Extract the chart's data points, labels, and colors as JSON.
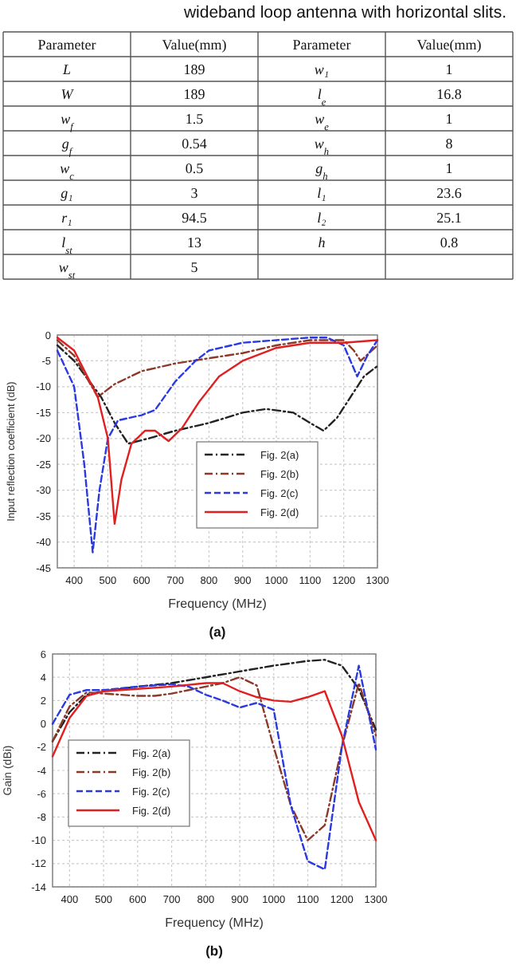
{
  "chart_data": [
    {
      "type": "other",
      "title": "wideband loop antenna with horizontal slits.",
      "annotations": [
        "Parameter",
        "Value(mm)",
        "Parameter",
        "Value(mm)",
        "L",
        "189",
        "w₁",
        "1",
        "W",
        "189",
        "l$_{e}$",
        "16.8",
        "w$_{f}$",
        "1.5",
        "w$_{e}$",
        "1",
        "g$_{f}$",
        "0.54",
        "w$_{h}$",
        "8",
        "w$_{c}$",
        "0.5",
        "g$_{h}$",
        "1",
        "g₁",
        "3",
        "l₁",
        "23.6",
        "r₁",
        "94.5",
        "l₂",
        "25.1",
        "l$_{st}$",
        "13",
        "h",
        "0.8",
        "w$_{st}$",
        "5"
      ]
    },
    {
      "type": "line",
      "xlabel": "Frequency (MHz)",
      "ylabel": "Input reflection coefficient (dB)",
      "annotations": [
        "(a)"
      ],
      "xlim": [
        350,
        1300
      ],
      "xticks": [
        400,
        500,
        600,
        700,
        800,
        900,
        1000,
        1100,
        1200,
        1300
      ],
      "ylim": [
        -45,
        0
      ],
      "yticks": [
        -45,
        -40,
        -35,
        -30,
        -25,
        -20,
        -15,
        -10,
        -5,
        0
      ],
      "grid": true,
      "legend": "bottom",
      "series": [
        {
          "name": "Fig. 2(a)",
          "color": "#222222",
          "line_style": "dashdot",
          "x": [
            350,
            400,
            480,
            520,
            560,
            620,
            700,
            800,
            900,
            970,
            1050,
            1100,
            1140,
            1180,
            1220,
            1260,
            1300
          ],
          "values": [
            -2,
            -5,
            -12,
            -17,
            -21,
            -20,
            -18.5,
            -17,
            -15,
            -14.3,
            -15,
            -17,
            -18.5,
            -16,
            -12,
            -8,
            -6
          ]
        },
        {
          "name": "Fig. 2(b)",
          "color": "#8b3a2a",
          "line_style": "dashdot",
          "x": [
            350,
            400,
            470,
            520,
            600,
            700,
            800,
            900,
            1000,
            1100,
            1200,
            1230,
            1250,
            1300
          ],
          "values": [
            -1,
            -4,
            -12,
            -9.5,
            -7,
            -5.5,
            -4.5,
            -3.5,
            -2,
            -1,
            -1,
            -3,
            -5,
            -2
          ]
        },
        {
          "name": "Fig. 2(c)",
          "color": "#2a3ae0",
          "line_style": "dashed",
          "x": [
            350,
            400,
            430,
            455,
            475,
            500,
            530,
            600,
            640,
            700,
            760,
            800,
            900,
            1000,
            1100,
            1150,
            1200,
            1240,
            1270,
            1300
          ],
          "values": [
            -3,
            -10,
            -25,
            -42,
            -30,
            -20,
            -16.5,
            -15.5,
            -14.5,
            -9,
            -5,
            -3,
            -1.5,
            -1,
            -0.5,
            -0.5,
            -2,
            -8,
            -4,
            -1
          ]
        },
        {
          "name": "Fig. 2(d)",
          "color": "#e02020",
          "line_style": "solid",
          "x": [
            350,
            400,
            470,
            500,
            520,
            540,
            570,
            610,
            640,
            680,
            720,
            770,
            830,
            900,
            1000,
            1100,
            1200,
            1300
          ],
          "values": [
            -0.5,
            -3,
            -12,
            -20,
            -36.5,
            -28,
            -21,
            -18.5,
            -18.5,
            -20.5,
            -18,
            -13,
            -8,
            -5,
            -2.5,
            -1.5,
            -1.5,
            -1
          ]
        }
      ]
    },
    {
      "type": "line",
      "xlabel": "Frequency (MHz)",
      "ylabel": "Gain (dBi)",
      "annotations": [
        "(b)"
      ],
      "xlim": [
        350,
        1300
      ],
      "xticks": [
        400,
        500,
        600,
        700,
        800,
        900,
        1000,
        1100,
        1200,
        1300
      ],
      "ylim": [
        -14,
        6
      ],
      "yticks": [
        -14,
        -12,
        -10,
        -8,
        -6,
        -4,
        -2,
        0,
        2,
        4,
        6
      ],
      "grid": true,
      "legend": "left",
      "series": [
        {
          "name": "Fig. 2(a)",
          "color": "#222222",
          "line_style": "dashdot",
          "x": [
            350,
            400,
            450,
            500,
            600,
            700,
            800,
            900,
            1000,
            1100,
            1150,
            1200,
            1250,
            1300
          ],
          "values": [
            -1.5,
            1,
            2.5,
            2.8,
            3.2,
            3.5,
            4,
            4.5,
            5,
            5.4,
            5.5,
            5,
            3,
            -0.5
          ]
        },
        {
          "name": "Fig. 2(b)",
          "color": "#8b3a2a",
          "line_style": "dashdot",
          "x": [
            350,
            400,
            450,
            500,
            550,
            600,
            650,
            700,
            750,
            800,
            850,
            900,
            950,
            1000,
            1050,
            1100,
            1150,
            1200,
            1250,
            1300
          ],
          "values": [
            -1.5,
            1.5,
            2.7,
            2.6,
            2.5,
            2.4,
            2.4,
            2.6,
            2.9,
            3.2,
            3.5,
            4,
            3.3,
            -2,
            -7,
            -10,
            -8.7,
            -2,
            3.5,
            -1
          ]
        },
        {
          "name": "Fig. 2(c)",
          "color": "#2a3ae0",
          "line_style": "dashed",
          "x": [
            350,
            400,
            450,
            500,
            600,
            700,
            750,
            800,
            850,
            900,
            950,
            1000,
            1050,
            1100,
            1150,
            1200,
            1250,
            1300
          ],
          "values": [
            0,
            2.5,
            2.9,
            2.9,
            3.2,
            3.4,
            3.2,
            2.5,
            2,
            1.4,
            1.8,
            1.2,
            -7,
            -11.8,
            -12.5,
            -2,
            5,
            -2.2
          ]
        },
        {
          "name": "Fig. 2(d)",
          "color": "#e02020",
          "line_style": "solid",
          "x": [
            350,
            400,
            450,
            500,
            600,
            700,
            800,
            850,
            900,
            950,
            1000,
            1050,
            1100,
            1150,
            1200,
            1250,
            1300
          ],
          "values": [
            -2.8,
            0.5,
            2.4,
            2.8,
            3,
            3.2,
            3.5,
            3.5,
            2.8,
            2.3,
            2,
            1.9,
            2.3,
            2.8,
            -1,
            -6.7,
            -10
          ]
        }
      ]
    }
  ]
}
